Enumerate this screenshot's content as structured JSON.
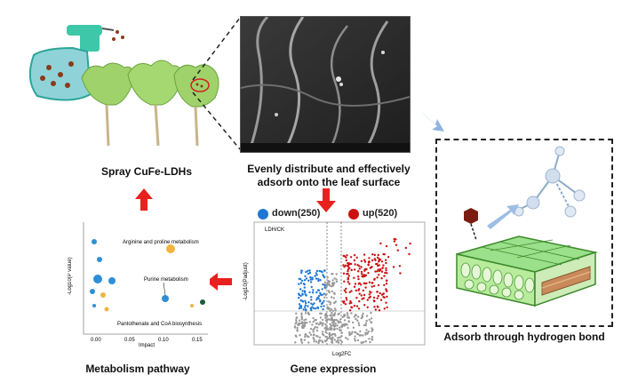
{
  "labels": {
    "spray": "Spray CuFe-LDHs",
    "distribute_line1": "Evenly distribute and effectively",
    "distribute_line2": "adsorb onto the leaf surface",
    "hbond": "Adsorb through hydrogen bond",
    "metabolism": "Metabolism pathway",
    "gene": "Gene expression"
  },
  "volcano": {
    "down_label": "down(250)",
    "up_label": "up(520)",
    "group_label": "LDH/CK",
    "xlabel": "Log2FC",
    "ylabel": "-Log10(Padjust)",
    "colors": {
      "down": "#1f77d4",
      "up": "#cc1111",
      "ns": "#999999"
    }
  },
  "metabolism_chart": {
    "xlabel": "Impact",
    "ylabel": "-Log10(P value)",
    "annotations": [
      "Arginine and proline metabolism",
      "Purine metabolism",
      "Pantothenate and CoA biosynthesis"
    ],
    "xticks": [
      "0.00",
      "0.05",
      "0.10",
      "0.15"
    ]
  },
  "arrows": {
    "color": "#e8211e",
    "blue": "#8fb3de"
  }
}
